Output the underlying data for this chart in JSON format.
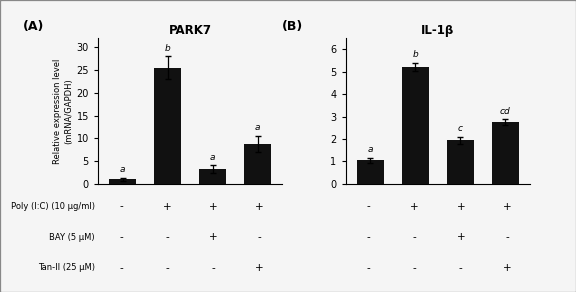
{
  "panel_A": {
    "title": "PARK7",
    "ylabel": "Relative expression level\n(mRNA/GAPDH)",
    "values": [
      1.0,
      25.5,
      3.2,
      8.8
    ],
    "errors": [
      0.3,
      2.5,
      0.9,
      1.8
    ],
    "letters": [
      "a",
      "b",
      "a",
      "a"
    ],
    "ylim": [
      0,
      32
    ],
    "yticks": [
      0,
      5,
      10,
      15,
      20,
      25,
      30
    ],
    "bar_color": "#111111",
    "label": "(A)"
  },
  "panel_B": {
    "title": "IL-1β",
    "values": [
      1.05,
      5.2,
      1.95,
      2.75
    ],
    "errors": [
      0.12,
      0.18,
      0.15,
      0.12
    ],
    "letters": [
      "a",
      "b",
      "c",
      "cd"
    ],
    "ylim": [
      0,
      6.5
    ],
    "yticks": [
      0,
      1,
      2,
      3,
      4,
      5,
      6
    ],
    "bar_color": "#111111",
    "label": "(B)"
  },
  "row_labels": [
    "Poly (I:C) (10 μg/ml)",
    "BAY (5 μM)",
    "Tan-II (25 μM)"
  ],
  "col_signs_A": [
    [
      "-",
      "+",
      "+",
      "+"
    ],
    [
      "-",
      "-",
      "+",
      "-"
    ],
    [
      "-",
      "-",
      "-",
      "+"
    ]
  ],
  "col_signs_B": [
    [
      "-",
      "+",
      "+",
      "+"
    ],
    [
      "-",
      "-",
      "+",
      "-"
    ],
    [
      "-",
      "-",
      "-",
      "+"
    ]
  ],
  "bg_color": "#f5f5f5",
  "bar_width": 0.6,
  "border_color": "#aaaaaa"
}
